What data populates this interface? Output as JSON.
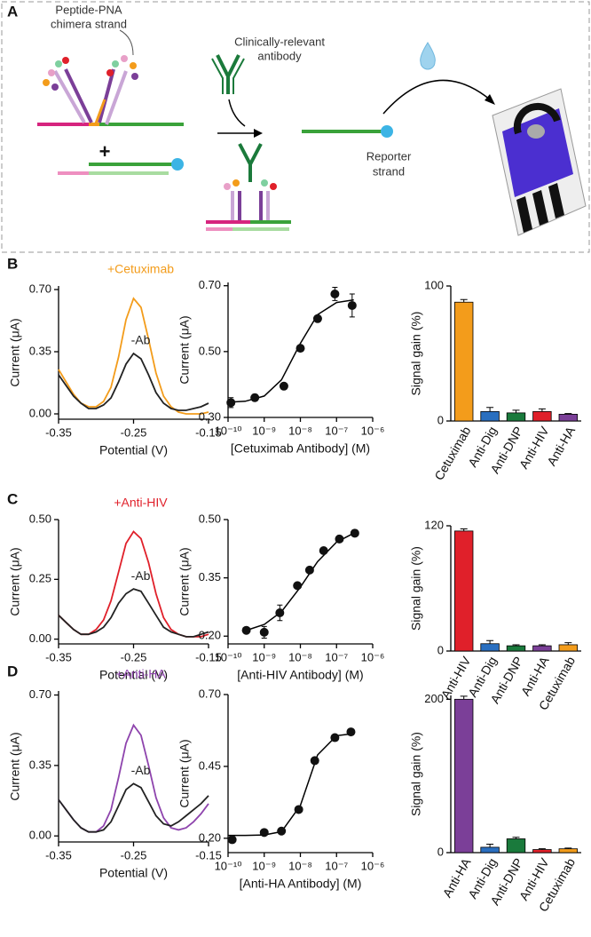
{
  "diagram": {
    "label": "A",
    "peptide_pna": [
      "Peptide-PNA",
      "chimera strand"
    ],
    "antibody": [
      "Clinically-relevant",
      "antibody"
    ],
    "reporter": [
      "Reporter",
      "strand"
    ],
    "plus": "+"
  },
  "panel_labels": [
    "B",
    "C",
    "D"
  ],
  "chart_data": [
    {
      "type": "line",
      "xlabel": "Potential (V)",
      "ylabel": "Current (μA)",
      "x": [
        -0.35,
        -0.34,
        -0.33,
        -0.32,
        -0.31,
        -0.3,
        -0.29,
        -0.28,
        -0.27,
        -0.26,
        -0.25,
        -0.24,
        -0.23,
        -0.22,
        -0.21,
        -0.2,
        -0.19,
        -0.18,
        -0.17,
        -0.16,
        -0.15
      ],
      "xlim": [
        -0.35,
        -0.15
      ],
      "xticks": [
        -0.35,
        -0.25,
        -0.15
      ],
      "ylim": [
        -0.03,
        0.72
      ],
      "yticks": [
        {
          "value": 0,
          "label": "0.00"
        },
        0.35,
        {
          "value": 0.7,
          "label": "0.70"
        }
      ],
      "series": [
        {
          "name": "+Cetuximab",
          "color": "#f39c1b",
          "values": [
            0.25,
            0.18,
            0.11,
            0.06,
            0.04,
            0.04,
            0.07,
            0.15,
            0.32,
            0.53,
            0.65,
            0.6,
            0.42,
            0.23,
            0.1,
            0.04,
            0.01,
            0.0,
            0.0,
            0.0,
            0.01
          ]
        },
        {
          "name": "-Ab",
          "color": "#222222",
          "values": [
            0.22,
            0.16,
            0.1,
            0.06,
            0.03,
            0.03,
            0.05,
            0.09,
            0.18,
            0.28,
            0.34,
            0.31,
            0.22,
            0.12,
            0.06,
            0.03,
            0.02,
            0.02,
            0.03,
            0.04,
            0.06
          ]
        }
      ]
    },
    {
      "type": "scatter",
      "xscale": "log",
      "xlabel": "[Cetuximab Antibody] (M)",
      "ylabel": "Current (μA)",
      "xlim": [
        1e-10,
        1e-06
      ],
      "xticks": [
        {
          "value": 1e-10,
          "label": "10⁻¹⁰"
        },
        {
          "value": 1e-09,
          "label": "10⁻⁹"
        },
        {
          "value": 1e-08,
          "label": "10⁻⁸"
        },
        {
          "value": 1e-07,
          "label": "10⁻⁷"
        },
        {
          "value": 1e-06,
          "label": "10⁻⁶"
        }
      ],
      "ylim": [
        0.3,
        0.71
      ],
      "yticks": [
        {
          "value": 0.3,
          "label": "0.30"
        },
        {
          "value": 0.5,
          "label": "0.50"
        },
        {
          "value": 0.7,
          "label": "0.70"
        }
      ],
      "x": [
        1.2e-10,
        5.5e-10,
        3.5e-09,
        1e-08,
        3e-08,
        9e-08,
        2.7e-07
      ],
      "values": [
        0.345,
        0.36,
        0.395,
        0.51,
        0.6,
        0.675,
        0.64
      ],
      "errors": [
        0.015,
        0.01,
        0.005,
        0.005,
        0.005,
        0.02,
        0.035
      ],
      "fit": {
        "x": [
          1e-10,
          3e-10,
          1e-09,
          3e-09,
          1e-08,
          3e-08,
          1e-07,
          3e-07
        ],
        "values": [
          0.346,
          0.349,
          0.365,
          0.414,
          0.525,
          0.612,
          0.649,
          0.657
        ]
      }
    },
    {
      "type": "bar",
      "ylabel": "Signal gain (%)",
      "categories": [
        "Cetuximab",
        "Anti-Dig",
        "Anti-DNP",
        "Anti-HIV",
        "Anti-HA"
      ],
      "values": [
        88,
        7,
        6,
        7,
        5
      ],
      "errors": [
        2,
        3,
        2,
        2,
        0.5
      ],
      "colors": [
        "#f39c1b",
        "#2a6fc0",
        "#1a7a3c",
        "#e0202a",
        "#7b3f98"
      ],
      "ylim": [
        0,
        100
      ],
      "yticks": [
        0,
        100
      ]
    },
    {
      "type": "line",
      "xlabel": "Potential (V)",
      "ylabel": "Current (μA)",
      "x": [
        -0.35,
        -0.34,
        -0.33,
        -0.32,
        -0.31,
        -0.3,
        -0.29,
        -0.28,
        -0.27,
        -0.26,
        -0.25,
        -0.24,
        -0.23,
        -0.22,
        -0.21,
        -0.2,
        -0.19,
        -0.18,
        -0.17,
        -0.16,
        -0.15
      ],
      "xlim": [
        -0.35,
        -0.15
      ],
      "xticks": [
        -0.35,
        -0.25,
        -0.15
      ],
      "ylim": [
        -0.02,
        0.5
      ],
      "yticks": [
        {
          "value": 0,
          "label": "0.00"
        },
        0.25,
        {
          "value": 0.5,
          "label": "0.50"
        }
      ],
      "series": [
        {
          "name": "+Anti-HIV",
          "color": "#e0202a",
          "values": [
            0.1,
            0.07,
            0.04,
            0.02,
            0.02,
            0.04,
            0.08,
            0.16,
            0.28,
            0.4,
            0.45,
            0.42,
            0.32,
            0.19,
            0.09,
            0.04,
            0.02,
            0.01,
            0.01,
            0.01,
            0.02
          ]
        },
        {
          "name": "-Ab",
          "color": "#222222",
          "values": [
            0.1,
            0.07,
            0.04,
            0.02,
            0.02,
            0.03,
            0.05,
            0.09,
            0.15,
            0.19,
            0.21,
            0.2,
            0.15,
            0.1,
            0.05,
            0.03,
            0.02,
            0.01,
            0.01,
            0.02,
            0.03
          ]
        }
      ]
    },
    {
      "type": "scatter",
      "xscale": "log",
      "xlabel": "[Anti-HIV Antibody] (M)",
      "ylabel": "Current (μA)",
      "xlim": [
        1e-10,
        1e-06
      ],
      "xticks": [
        {
          "value": 1e-10,
          "label": "10⁻¹⁰"
        },
        {
          "value": 1e-09,
          "label": "10⁻⁹"
        },
        {
          "value": 1e-08,
          "label": "10⁻⁸"
        },
        {
          "value": 1e-07,
          "label": "10⁻⁷"
        },
        {
          "value": 1e-06,
          "label": "10⁻⁶"
        }
      ],
      "ylim": [
        0.18,
        0.5
      ],
      "yticks": [
        {
          "value": 0.2,
          "label": "0.20"
        },
        0.35,
        {
          "value": 0.5,
          "label": "0.50"
        }
      ],
      "x": [
        3.2e-10,
        1e-09,
        2.7e-09,
        8.3e-09,
        1.8e-08,
        4.4e-08,
        1.2e-07,
        3.2e-07
      ],
      "values": [
        0.215,
        0.21,
        0.26,
        0.33,
        0.37,
        0.42,
        0.45,
        0.465
      ],
      "errors": [
        0.005,
        0.015,
        0.02,
        0.005,
        0.005,
        0.005,
        0.005,
        0.008
      ],
      "fit": {
        "x": [
          3e-10,
          1e-09,
          3e-09,
          1e-08,
          3e-08,
          1e-07,
          3e-07
        ],
        "values": [
          0.214,
          0.23,
          0.263,
          0.326,
          0.392,
          0.442,
          0.465
        ]
      }
    },
    {
      "type": "bar",
      "ylabel": "Signal gain (%)",
      "categories": [
        "Anti-HIV",
        "Anti-Dig",
        "Anti-DNP",
        "Anti-HA",
        "Cetuximab"
      ],
      "values": [
        115,
        7,
        5,
        5,
        6
      ],
      "errors": [
        2,
        3,
        1,
        1,
        2
      ],
      "colors": [
        "#e0202a",
        "#2a6fc0",
        "#1a7a3c",
        "#7b3f98",
        "#f39c1b"
      ],
      "ylim": [
        0,
        120
      ],
      "yticks": [
        0,
        120
      ]
    },
    {
      "type": "line",
      "xlabel": "Potential (V)",
      "ylabel": "Current (μA)",
      "x": [
        -0.35,
        -0.34,
        -0.33,
        -0.32,
        -0.31,
        -0.3,
        -0.29,
        -0.28,
        -0.27,
        -0.26,
        -0.25,
        -0.24,
        -0.23,
        -0.22,
        -0.21,
        -0.2,
        -0.19,
        -0.18,
        -0.17,
        -0.16,
        -0.15
      ],
      "xlim": [
        -0.35,
        -0.15
      ],
      "xticks": [
        -0.35,
        -0.25,
        -0.15
      ],
      "ylim": [
        -0.03,
        0.72
      ],
      "yticks": [
        {
          "value": 0,
          "label": "0.00"
        },
        0.35,
        {
          "value": 0.7,
          "label": "0.70"
        }
      ],
      "series": [
        {
          "name": "+Anti-HA",
          "color": "#8e44ad",
          "values": [
            0.18,
            0.13,
            0.08,
            0.04,
            0.02,
            0.02,
            0.05,
            0.13,
            0.29,
            0.46,
            0.55,
            0.5,
            0.35,
            0.19,
            0.09,
            0.04,
            0.03,
            0.04,
            0.07,
            0.11,
            0.16
          ]
        },
        {
          "name": "-Ab",
          "color": "#222222",
          "values": [
            0.18,
            0.13,
            0.08,
            0.04,
            0.02,
            0.02,
            0.03,
            0.07,
            0.15,
            0.23,
            0.26,
            0.24,
            0.17,
            0.1,
            0.06,
            0.05,
            0.07,
            0.1,
            0.13,
            0.16,
            0.2
          ]
        }
      ]
    },
    {
      "type": "scatter",
      "xscale": "log",
      "xlabel": "[Anti-HA Antibody] (M)",
      "ylabel": "Current (μA)",
      "xlim": [
        1e-10,
        1e-06
      ],
      "xticks": [
        {
          "value": 1e-10,
          "label": "10⁻¹⁰"
        },
        {
          "value": 1e-09,
          "label": "10⁻⁹"
        },
        {
          "value": 1e-08,
          "label": "10⁻⁸"
        },
        {
          "value": 1e-07,
          "label": "10⁻⁷"
        },
        {
          "value": 1e-06,
          "label": "10⁻⁶"
        }
      ],
      "ylim": [
        0.15,
        0.7
      ],
      "yticks": [
        {
          "value": 0.2,
          "label": "0.20"
        },
        0.45,
        {
          "value": 0.7,
          "label": "0.70"
        }
      ],
      "x": [
        1.3e-10,
        1e-09,
        3e-09,
        9e-09,
        2.5e-08,
        9e-08,
        2.5e-07
      ],
      "values": [
        0.195,
        0.22,
        0.225,
        0.3,
        0.47,
        0.55,
        0.57
      ],
      "errors": [
        0.01,
        0.005,
        0.01,
        0.005,
        0.005,
        0.005,
        0.01
      ],
      "fit": {
        "x": [
          1e-10,
          3e-10,
          1e-09,
          3e-09,
          1e-08,
          3e-08,
          1e-07,
          3e-07
        ],
        "values": [
          0.21,
          0.21,
          0.2115,
          0.223,
          0.314,
          0.49,
          0.557,
          0.564
        ]
      }
    },
    {
      "type": "bar",
      "ylabel": "Signal gain (%)",
      "categories": [
        "Anti-HA",
        "Anti-Dig",
        "Anti-DNP",
        "Anti-HIV",
        "Cetuximab"
      ],
      "values": [
        200,
        7,
        18,
        4,
        5
      ],
      "errors": [
        4,
        4,
        2,
        1,
        1
      ],
      "colors": [
        "#7b3f98",
        "#2a6fc0",
        "#1a7a3c",
        "#e0202a",
        "#f39c1b"
      ],
      "ylim": [
        0,
        205
      ],
      "yticks": [
        0,
        200
      ]
    }
  ]
}
